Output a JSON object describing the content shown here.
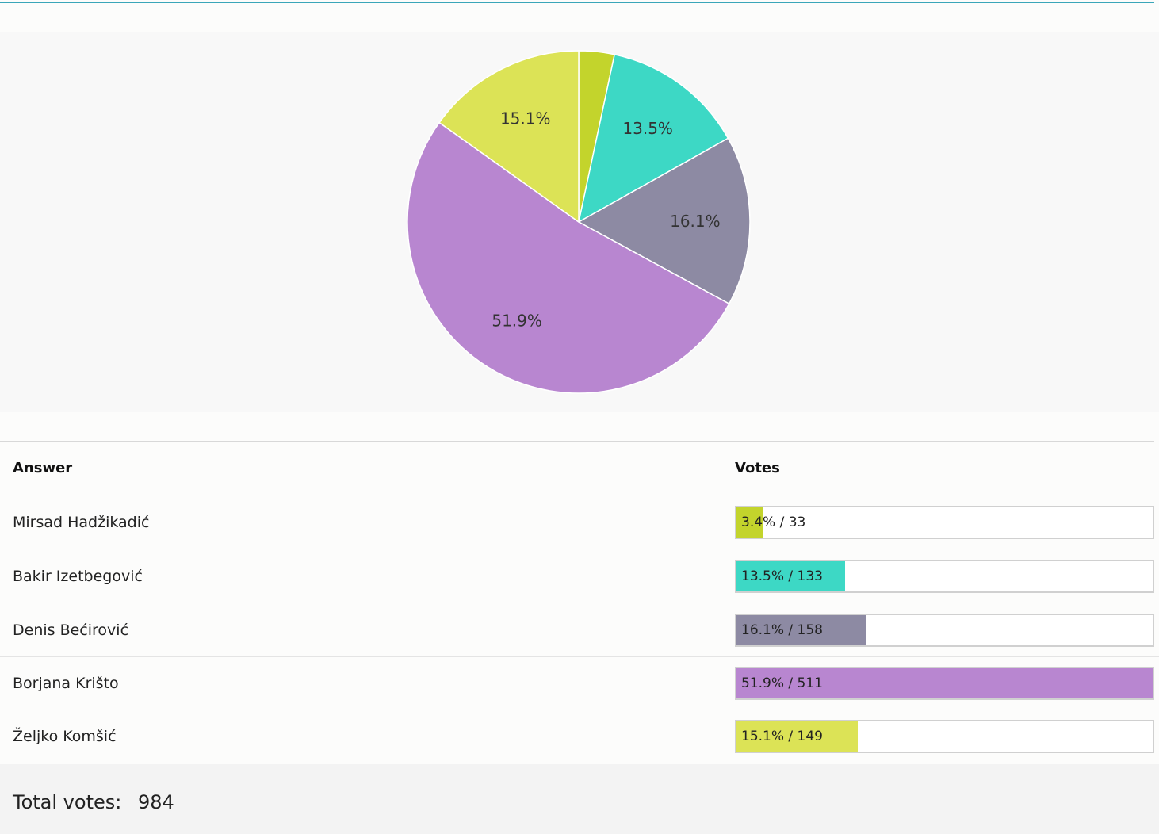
{
  "chart_data": {
    "type": "pie",
    "categories": [
      "Mirsad Hadžikadić",
      "Bakir Izetbegović",
      "Denis Bećirović",
      "Borjana Krišto",
      "Željko Komšić"
    ],
    "values": [
      33,
      133,
      158,
      511,
      149
    ],
    "percent_labels": [
      "3.4%",
      "13.5%",
      "16.1%",
      "51.9%",
      "15.1%"
    ],
    "show_label": [
      false,
      true,
      true,
      true,
      true
    ],
    "colors": [
      "#c3d42c",
      "#3dd8c5",
      "#8d8aa3",
      "#b886d0",
      "#dce356"
    ],
    "start_angle_deg": 0,
    "direction": "clockwise"
  },
  "table": {
    "headers": {
      "answer": "Answer",
      "votes": "Votes"
    },
    "rows": [
      {
        "answer": "Mirsad Hadžikadić",
        "votes_text": "3.4% / 33",
        "percent": 3.4,
        "color": "#c3d42c"
      },
      {
        "answer": "Bakir Izetbegović",
        "votes_text": "13.5% / 133",
        "percent": 13.5,
        "color": "#3dd8c5"
      },
      {
        "answer": "Denis Bećirović",
        "votes_text": "16.1% / 158",
        "percent": 16.1,
        "color": "#8d8aa3"
      },
      {
        "answer": "Borjana Krišto",
        "votes_text": "51.9% / 511",
        "percent": 51.9,
        "color": "#b886d0"
      },
      {
        "answer": "Željko Komšić",
        "votes_text": "15.1% / 149",
        "percent": 15.1,
        "color": "#dce356"
      }
    ]
  },
  "footer": {
    "total_label": "Total votes:",
    "total_value": "984"
  }
}
